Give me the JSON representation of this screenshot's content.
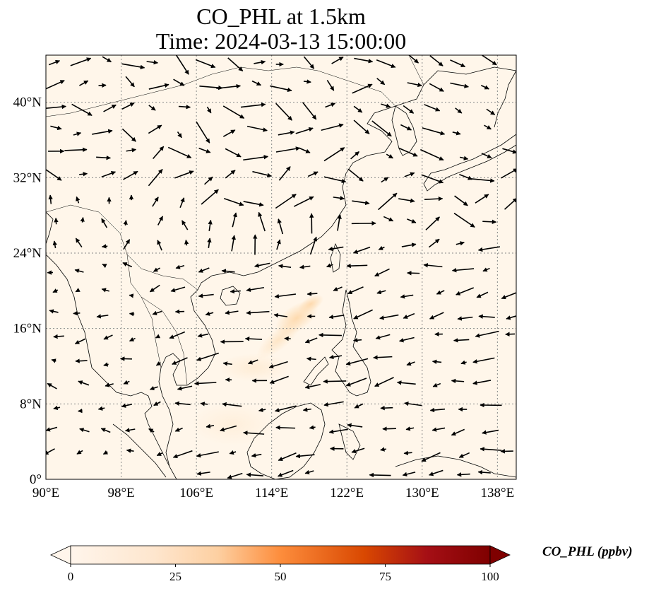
{
  "title": "CO_PHL at 1.5km",
  "time_label": "Time: 2024-03-13 15:00:00",
  "map": {
    "lon_range": [
      90,
      140
    ],
    "lat_range": [
      0,
      45
    ],
    "lon_ticks": [
      90,
      98,
      106,
      114,
      122,
      130,
      138
    ],
    "lon_tick_labels": [
      "90°E",
      "98°E",
      "106°E",
      "114°E",
      "122°E",
      "130°E",
      "138°E"
    ],
    "lat_ticks": [
      0,
      8,
      16,
      24,
      32,
      40
    ],
    "lat_tick_labels": [
      "0°",
      "8°N",
      "16°N",
      "24°N",
      "32°N",
      "40°N"
    ],
    "gridlines": "dotted",
    "background_color": "#fff6ea",
    "plume_color": "#fdd7a8",
    "coastline_color": "#000000"
  },
  "colorbar": {
    "label": "CO_PHL (ppbv)",
    "min": 0,
    "max": 100,
    "ticks": [
      0,
      25,
      50,
      75,
      100
    ],
    "tick_labels": [
      "0",
      "25",
      "50",
      "75",
      "100"
    ],
    "extend": "both",
    "colors": [
      "#fff5eb",
      "#fdd0a2",
      "#fd8d3c",
      "#d94801",
      "#a50f15",
      "#7f0000"
    ]
  }
}
